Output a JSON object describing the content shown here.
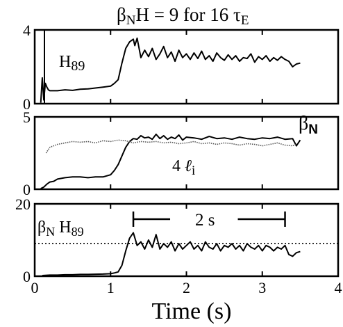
{
  "figure": {
    "title_parts": {
      "beta": "β",
      "n": "N",
      "mid": "H = 9 for 16 ",
      "tau": "τ",
      "e": "E"
    },
    "xlabel": "Time (s)",
    "x_ticks": [
      "0",
      "1",
      "2",
      "3",
      "4"
    ]
  },
  "chart_data": [
    {
      "type": "line",
      "panel": "top",
      "xlim": [
        0,
        4
      ],
      "ylim": [
        0,
        4
      ],
      "y_ticks": [
        "0",
        "4"
      ],
      "label": {
        "base": "H",
        "sub": "89"
      },
      "series": [
        {
          "name": "H89",
          "style": "solid",
          "x": [
            0.08,
            0.1,
            0.12,
            0.14,
            0.16,
            0.18,
            0.2,
            0.3,
            0.4,
            0.5,
            0.6,
            0.7,
            0.8,
            0.9,
            1.0,
            1.05,
            1.1,
            1.15,
            1.2,
            1.25,
            1.3,
            1.32,
            1.35,
            1.4,
            1.45,
            1.5,
            1.55,
            1.6,
            1.65,
            1.7,
            1.75,
            1.8,
            1.85,
            1.9,
            1.95,
            2.0,
            2.05,
            2.1,
            2.15,
            2.2,
            2.25,
            2.3,
            2.35,
            2.4,
            2.45,
            2.5,
            2.55,
            2.6,
            2.65,
            2.7,
            2.75,
            2.8,
            2.85,
            2.9,
            2.95,
            3.0,
            3.05,
            3.1,
            3.15,
            3.2,
            3.25,
            3.3,
            3.35,
            3.4,
            3.45,
            3.5
          ],
          "values": [
            0.05,
            1.4,
            0.2,
            1.1,
            0.9,
            0.75,
            0.7,
            0.7,
            0.75,
            0.72,
            0.78,
            0.8,
            0.85,
            0.9,
            0.95,
            1.1,
            1.3,
            2.2,
            3.0,
            3.35,
            3.5,
            3.15,
            3.55,
            2.5,
            2.9,
            2.55,
            3.0,
            2.4,
            2.7,
            3.1,
            2.5,
            2.8,
            2.3,
            2.9,
            2.5,
            2.7,
            2.4,
            2.75,
            2.45,
            2.85,
            2.4,
            2.6,
            2.3,
            2.75,
            2.5,
            2.35,
            2.65,
            2.4,
            2.6,
            2.3,
            2.5,
            2.45,
            2.7,
            2.25,
            2.55,
            2.4,
            2.6,
            2.3,
            2.5,
            2.35,
            2.55,
            2.4,
            2.3,
            2.0,
            2.15,
            2.2
          ]
        }
      ]
    },
    {
      "type": "line",
      "panel": "middle",
      "xlim": [
        0,
        4
      ],
      "ylim": [
        0,
        5
      ],
      "y_ticks": [
        "0",
        "5"
      ],
      "label_beta": {
        "base": "β",
        "sub": "N"
      },
      "label_li": {
        "num": "4 ",
        "ell": "ℓ",
        "sub": "i"
      },
      "series": [
        {
          "name": "βN",
          "style": "solid",
          "x": [
            0.08,
            0.12,
            0.16,
            0.2,
            0.25,
            0.3,
            0.4,
            0.5,
            0.6,
            0.7,
            0.8,
            0.9,
            1.0,
            1.05,
            1.1,
            1.15,
            1.2,
            1.25,
            1.3,
            1.35,
            1.4,
            1.45,
            1.5,
            1.55,
            1.6,
            1.65,
            1.7,
            1.75,
            1.8,
            1.85,
            1.9,
            1.95,
            2.0,
            2.1,
            2.2,
            2.3,
            2.4,
            2.5,
            2.6,
            2.7,
            2.8,
            2.9,
            3.0,
            3.1,
            3.2,
            3.3,
            3.4,
            3.45,
            3.5
          ],
          "values": [
            0.05,
            0.15,
            0.35,
            0.5,
            0.55,
            0.7,
            0.8,
            0.85,
            0.85,
            0.8,
            0.85,
            0.85,
            1.0,
            1.3,
            1.7,
            2.3,
            2.9,
            3.3,
            3.5,
            3.45,
            3.7,
            3.55,
            3.6,
            3.45,
            3.8,
            3.5,
            3.7,
            3.45,
            3.6,
            3.5,
            3.75,
            3.4,
            3.6,
            3.55,
            3.45,
            3.65,
            3.5,
            3.55,
            3.45,
            3.6,
            3.5,
            3.45,
            3.55,
            3.5,
            3.6,
            3.45,
            3.5,
            3.0,
            3.4
          ]
        },
        {
          "name": "4 ℓi",
          "style": "dotted",
          "x": [
            0.15,
            0.2,
            0.3,
            0.4,
            0.5,
            0.6,
            0.7,
            0.8,
            0.9,
            1.0,
            1.1,
            1.2,
            1.3,
            1.4,
            1.5,
            1.6,
            1.7,
            1.8,
            1.9,
            2.0,
            2.1,
            2.2,
            2.3,
            2.4,
            2.5,
            2.6,
            2.7,
            2.8,
            2.9,
            3.0,
            3.1,
            3.2,
            3.3,
            3.4,
            3.45
          ],
          "values": [
            2.5,
            2.9,
            3.1,
            3.2,
            3.3,
            3.25,
            3.3,
            3.2,
            3.35,
            3.3,
            3.4,
            3.35,
            3.2,
            3.3,
            3.25,
            3.3,
            3.2,
            3.25,
            3.15,
            3.2,
            3.3,
            3.15,
            3.2,
            3.1,
            3.2,
            3.15,
            3.05,
            3.15,
            3.1,
            3.0,
            3.1,
            3.2,
            3.05,
            3.0,
            3.1
          ]
        }
      ]
    },
    {
      "type": "line",
      "panel": "bottom",
      "xlim": [
        0,
        4
      ],
      "ylim": [
        0,
        20
      ],
      "y_ticks": [
        "0",
        "20"
      ],
      "label": {
        "beta": "β",
        "n": "N",
        "h": " H",
        "sub": "89"
      },
      "reference_line": {
        "y": 9,
        "style": "dotted"
      },
      "interval_marker": {
        "x_start": 1.3,
        "x_end": 3.3,
        "label": "2 s"
      },
      "series": [
        {
          "name": "βN H89",
          "style": "solid",
          "x": [
            0.1,
            0.2,
            0.3,
            0.4,
            0.5,
            0.6,
            0.7,
            0.8,
            0.9,
            1.0,
            1.05,
            1.1,
            1.15,
            1.2,
            1.25,
            1.3,
            1.35,
            1.4,
            1.45,
            1.5,
            1.55,
            1.6,
            1.65,
            1.7,
            1.75,
            1.8,
            1.85,
            1.9,
            1.95,
            2.0,
            2.05,
            2.1,
            2.15,
            2.2,
            2.25,
            2.3,
            2.35,
            2.4,
            2.45,
            2.5,
            2.55,
            2.6,
            2.65,
            2.7,
            2.75,
            2.8,
            2.85,
            2.9,
            2.95,
            3.0,
            3.05,
            3.1,
            3.15,
            3.2,
            3.25,
            3.3,
            3.35,
            3.4,
            3.45,
            3.5
          ],
          "values": [
            0.2,
            0.3,
            0.3,
            0.4,
            0.4,
            0.5,
            0.5,
            0.55,
            0.6,
            0.7,
            0.9,
            1.2,
            3.0,
            7.0,
            10.5,
            12.0,
            8.5,
            9.5,
            7.5,
            10.0,
            8.0,
            11.5,
            7.5,
            9.0,
            8.0,
            9.5,
            7.0,
            9.0,
            7.5,
            8.5,
            9.5,
            7.5,
            8.5,
            7.0,
            9.5,
            8.0,
            7.5,
            9.0,
            7.0,
            8.5,
            8.0,
            9.0,
            7.5,
            8.5,
            7.0,
            9.0,
            8.0,
            7.5,
            8.5,
            7.0,
            8.5,
            8.0,
            7.0,
            8.0,
            7.5,
            8.5,
            6.0,
            5.5,
            6.5,
            6.8
          ]
        }
      ]
    }
  ]
}
